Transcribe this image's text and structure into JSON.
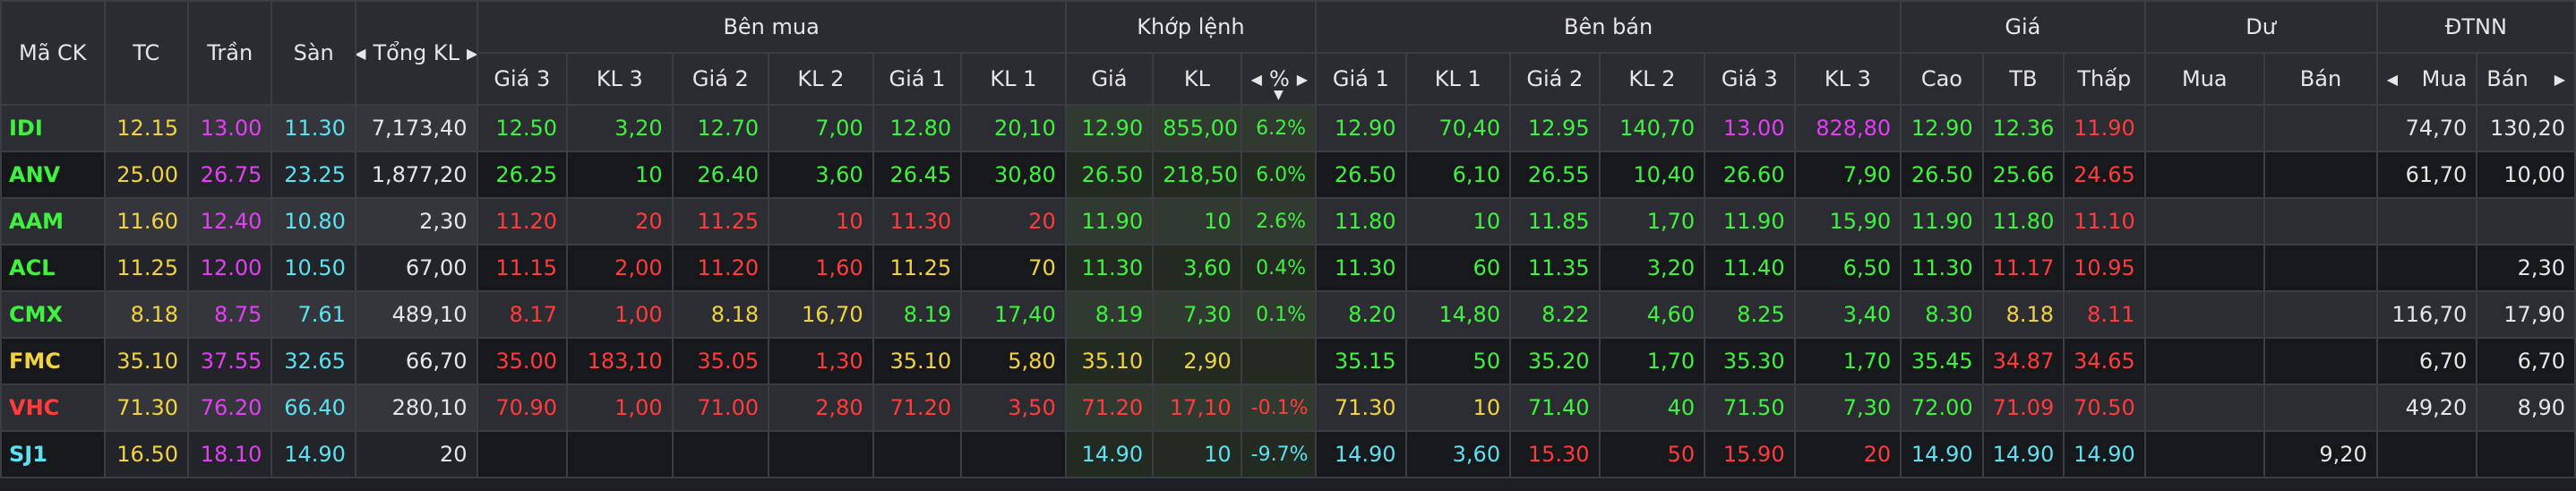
{
  "headers": {
    "code": "Mã CK",
    "ref": "TC",
    "ceil": "Trần",
    "floor": "Sàn",
    "total_vol": "Tổng KL",
    "buy_group": "Bên mua",
    "match_group": "Khớp lệnh",
    "sell_group": "Bên bán",
    "price_group": "Giá",
    "remain_group": "Dư",
    "foreign_group": "ĐTNN",
    "buy": [
      "Giá 3",
      "KL 3",
      "Giá 2",
      "KL 2",
      "Giá 1",
      "KL 1"
    ],
    "match": [
      "Giá",
      "KL",
      "%"
    ],
    "sell": [
      "Giá 1",
      "KL 1",
      "Giá 2",
      "KL 2",
      "Giá 3",
      "KL 3"
    ],
    "price": [
      "Cao",
      "TB",
      "Thấp"
    ],
    "remain": [
      "Mua",
      "Bán"
    ],
    "foreign": [
      "Mua",
      "Bán"
    ]
  },
  "icons": {
    "left": "caret-left-icon",
    "right": "caret-right-icon",
    "sort": "sort-down-icon"
  },
  "colors": {
    "green": "#3ff23f",
    "yellow": "#f2d33f",
    "red": "#ff3b3b",
    "purple": "#e23ff2",
    "cyan": "#5ce1f0",
    "white": "#e6e6e6"
  },
  "rows": [
    {
      "code": [
        "IDI",
        "green"
      ],
      "ref": [
        "12.15",
        "yellow"
      ],
      "ceil": [
        "13.00",
        "purple"
      ],
      "floor": [
        "11.30",
        "cyan"
      ],
      "total": [
        "7,173,40",
        "white"
      ],
      "buy": [
        [
          "12.50",
          "green"
        ],
        [
          "3,20",
          "green"
        ],
        [
          "12.70",
          "green"
        ],
        [
          "7,00",
          "green"
        ],
        [
          "12.80",
          "green"
        ],
        [
          "20,10",
          "green"
        ]
      ],
      "match": [
        [
          "12.90",
          "green"
        ],
        [
          "855,00",
          "green"
        ],
        [
          "6.2%",
          "green"
        ]
      ],
      "sell": [
        [
          "12.90",
          "green"
        ],
        [
          "70,40",
          "green"
        ],
        [
          "12.95",
          "green"
        ],
        [
          "140,70",
          "green"
        ],
        [
          "13.00",
          "purple"
        ],
        [
          "828,80",
          "purple"
        ]
      ],
      "price": [
        [
          "12.90",
          "green"
        ],
        [
          "12.36",
          "green"
        ],
        [
          "11.90",
          "red"
        ]
      ],
      "remain": [
        [
          "",
          "white"
        ],
        [
          "",
          "white"
        ]
      ],
      "foreign": [
        [
          "74,70",
          "white"
        ],
        [
          "130,20",
          "white"
        ]
      ]
    },
    {
      "code": [
        "ANV",
        "green"
      ],
      "ref": [
        "25.00",
        "yellow"
      ],
      "ceil": [
        "26.75",
        "purple"
      ],
      "floor": [
        "23.25",
        "cyan"
      ],
      "total": [
        "1,877,20",
        "white"
      ],
      "buy": [
        [
          "26.25",
          "green"
        ],
        [
          "10",
          "green"
        ],
        [
          "26.40",
          "green"
        ],
        [
          "3,60",
          "green"
        ],
        [
          "26.45",
          "green"
        ],
        [
          "30,80",
          "green"
        ]
      ],
      "match": [
        [
          "26.50",
          "green"
        ],
        [
          "218,50",
          "green"
        ],
        [
          "6.0%",
          "green"
        ]
      ],
      "sell": [
        [
          "26.50",
          "green"
        ],
        [
          "6,10",
          "green"
        ],
        [
          "26.55",
          "green"
        ],
        [
          "10,40",
          "green"
        ],
        [
          "26.60",
          "green"
        ],
        [
          "7,90",
          "green"
        ]
      ],
      "price": [
        [
          "26.50",
          "green"
        ],
        [
          "25.66",
          "green"
        ],
        [
          "24.65",
          "red"
        ]
      ],
      "remain": [
        [
          "",
          "white"
        ],
        [
          "",
          "white"
        ]
      ],
      "foreign": [
        [
          "61,70",
          "white"
        ],
        [
          "10,00",
          "white"
        ]
      ]
    },
    {
      "code": [
        "AAM",
        "green"
      ],
      "ref": [
        "11.60",
        "yellow"
      ],
      "ceil": [
        "12.40",
        "purple"
      ],
      "floor": [
        "10.80",
        "cyan"
      ],
      "total": [
        "2,30",
        "white"
      ],
      "buy": [
        [
          "11.20",
          "red"
        ],
        [
          "20",
          "red"
        ],
        [
          "11.25",
          "red"
        ],
        [
          "10",
          "red"
        ],
        [
          "11.30",
          "red"
        ],
        [
          "20",
          "red"
        ]
      ],
      "match": [
        [
          "11.90",
          "green"
        ],
        [
          "10",
          "green"
        ],
        [
          "2.6%",
          "green"
        ]
      ],
      "sell": [
        [
          "11.80",
          "green"
        ],
        [
          "10",
          "green"
        ],
        [
          "11.85",
          "green"
        ],
        [
          "1,70",
          "green"
        ],
        [
          "11.90",
          "green"
        ],
        [
          "15,90",
          "green"
        ]
      ],
      "price": [
        [
          "11.90",
          "green"
        ],
        [
          "11.80",
          "green"
        ],
        [
          "11.10",
          "red"
        ]
      ],
      "remain": [
        [
          "",
          "white"
        ],
        [
          "",
          "white"
        ]
      ],
      "foreign": [
        [
          "",
          "white"
        ],
        [
          "",
          "white"
        ]
      ]
    },
    {
      "code": [
        "ACL",
        "green"
      ],
      "ref": [
        "11.25",
        "yellow"
      ],
      "ceil": [
        "12.00",
        "purple"
      ],
      "floor": [
        "10.50",
        "cyan"
      ],
      "total": [
        "67,00",
        "white"
      ],
      "buy": [
        [
          "11.15",
          "red"
        ],
        [
          "2,00",
          "red"
        ],
        [
          "11.20",
          "red"
        ],
        [
          "1,60",
          "red"
        ],
        [
          "11.25",
          "yellow"
        ],
        [
          "70",
          "yellow"
        ]
      ],
      "match": [
        [
          "11.30",
          "green"
        ],
        [
          "3,60",
          "green"
        ],
        [
          "0.4%",
          "green"
        ]
      ],
      "sell": [
        [
          "11.30",
          "green"
        ],
        [
          "60",
          "green"
        ],
        [
          "11.35",
          "green"
        ],
        [
          "3,20",
          "green"
        ],
        [
          "11.40",
          "green"
        ],
        [
          "6,50",
          "green"
        ]
      ],
      "price": [
        [
          "11.30",
          "green"
        ],
        [
          "11.17",
          "red"
        ],
        [
          "10.95",
          "red"
        ]
      ],
      "remain": [
        [
          "",
          "white"
        ],
        [
          "",
          "white"
        ]
      ],
      "foreign": [
        [
          "",
          "white"
        ],
        [
          "2,30",
          "white"
        ]
      ]
    },
    {
      "code": [
        "CMX",
        "green"
      ],
      "ref": [
        "8.18",
        "yellow"
      ],
      "ceil": [
        "8.75",
        "purple"
      ],
      "floor": [
        "7.61",
        "cyan"
      ],
      "total": [
        "489,10",
        "white"
      ],
      "buy": [
        [
          "8.17",
          "red"
        ],
        [
          "1,00",
          "red"
        ],
        [
          "8.18",
          "yellow"
        ],
        [
          "16,70",
          "yellow"
        ],
        [
          "8.19",
          "green"
        ],
        [
          "17,40",
          "green"
        ]
      ],
      "match": [
        [
          "8.19",
          "green"
        ],
        [
          "7,30",
          "green"
        ],
        [
          "0.1%",
          "green"
        ]
      ],
      "sell": [
        [
          "8.20",
          "green"
        ],
        [
          "14,80",
          "green"
        ],
        [
          "8.22",
          "green"
        ],
        [
          "4,60",
          "green"
        ],
        [
          "8.25",
          "green"
        ],
        [
          "3,40",
          "green"
        ]
      ],
      "price": [
        [
          "8.30",
          "green"
        ],
        [
          "8.18",
          "yellow"
        ],
        [
          "8.11",
          "red"
        ]
      ],
      "remain": [
        [
          "",
          "white"
        ],
        [
          "",
          "white"
        ]
      ],
      "foreign": [
        [
          "116,70",
          "white"
        ],
        [
          "17,90",
          "white"
        ]
      ]
    },
    {
      "code": [
        "FMC",
        "yellow"
      ],
      "ref": [
        "35.10",
        "yellow"
      ],
      "ceil": [
        "37.55",
        "purple"
      ],
      "floor": [
        "32.65",
        "cyan"
      ],
      "total": [
        "66,70",
        "white"
      ],
      "buy": [
        [
          "35.00",
          "red"
        ],
        [
          "183,10",
          "red"
        ],
        [
          "35.05",
          "red"
        ],
        [
          "1,30",
          "red"
        ],
        [
          "35.10",
          "yellow"
        ],
        [
          "5,80",
          "yellow"
        ]
      ],
      "match": [
        [
          "35.10",
          "yellow"
        ],
        [
          "2,90",
          "yellow"
        ],
        [
          "",
          "white"
        ]
      ],
      "sell": [
        [
          "35.15",
          "green"
        ],
        [
          "50",
          "green"
        ],
        [
          "35.20",
          "green"
        ],
        [
          "1,70",
          "green"
        ],
        [
          "35.30",
          "green"
        ],
        [
          "1,70",
          "green"
        ]
      ],
      "price": [
        [
          "35.45",
          "green"
        ],
        [
          "34.87",
          "red"
        ],
        [
          "34.65",
          "red"
        ]
      ],
      "remain": [
        [
          "",
          "white"
        ],
        [
          "",
          "white"
        ]
      ],
      "foreign": [
        [
          "6,70",
          "white"
        ],
        [
          "6,70",
          "white"
        ]
      ]
    },
    {
      "code": [
        "VHC",
        "red"
      ],
      "ref": [
        "71.30",
        "yellow"
      ],
      "ceil": [
        "76.20",
        "purple"
      ],
      "floor": [
        "66.40",
        "cyan"
      ],
      "total": [
        "280,10",
        "white"
      ],
      "buy": [
        [
          "70.90",
          "red"
        ],
        [
          "1,00",
          "red"
        ],
        [
          "71.00",
          "red"
        ],
        [
          "2,80",
          "red"
        ],
        [
          "71.20",
          "red"
        ],
        [
          "3,50",
          "red"
        ]
      ],
      "match": [
        [
          "71.20",
          "red"
        ],
        [
          "17,10",
          "red"
        ],
        [
          "-0.1%",
          "red"
        ]
      ],
      "sell": [
        [
          "71.30",
          "yellow"
        ],
        [
          "10",
          "yellow"
        ],
        [
          "71.40",
          "green"
        ],
        [
          "40",
          "green"
        ],
        [
          "71.50",
          "green"
        ],
        [
          "7,30",
          "green"
        ]
      ],
      "price": [
        [
          "72.00",
          "green"
        ],
        [
          "71.09",
          "red"
        ],
        [
          "70.50",
          "red"
        ]
      ],
      "remain": [
        [
          "",
          "white"
        ],
        [
          "",
          "white"
        ]
      ],
      "foreign": [
        [
          "49,20",
          "white"
        ],
        [
          "8,90",
          "white"
        ]
      ]
    },
    {
      "code": [
        "SJ1",
        "cyan"
      ],
      "ref": [
        "16.50",
        "yellow"
      ],
      "ceil": [
        "18.10",
        "purple"
      ],
      "floor": [
        "14.90",
        "cyan"
      ],
      "total": [
        "20",
        "white"
      ],
      "buy": [
        [
          "",
          "white"
        ],
        [
          "",
          "white"
        ],
        [
          "",
          "white"
        ],
        [
          "",
          "white"
        ],
        [
          "",
          "white"
        ],
        [
          "",
          "white"
        ]
      ],
      "match": [
        [
          "14.90",
          "cyan"
        ],
        [
          "10",
          "cyan"
        ],
        [
          "-9.7%",
          "cyan"
        ]
      ],
      "sell": [
        [
          "14.90",
          "cyan"
        ],
        [
          "3,60",
          "cyan"
        ],
        [
          "15.30",
          "red"
        ],
        [
          "50",
          "red"
        ],
        [
          "15.90",
          "red"
        ],
        [
          "20",
          "red"
        ]
      ],
      "price": [
        [
          "14.90",
          "cyan"
        ],
        [
          "14.90",
          "cyan"
        ],
        [
          "14.90",
          "cyan"
        ]
      ],
      "remain": [
        [
          "",
          "white"
        ],
        [
          "9,20",
          "white"
        ]
      ],
      "foreign": [
        [
          "",
          "white"
        ],
        [
          "",
          "white"
        ]
      ]
    }
  ]
}
